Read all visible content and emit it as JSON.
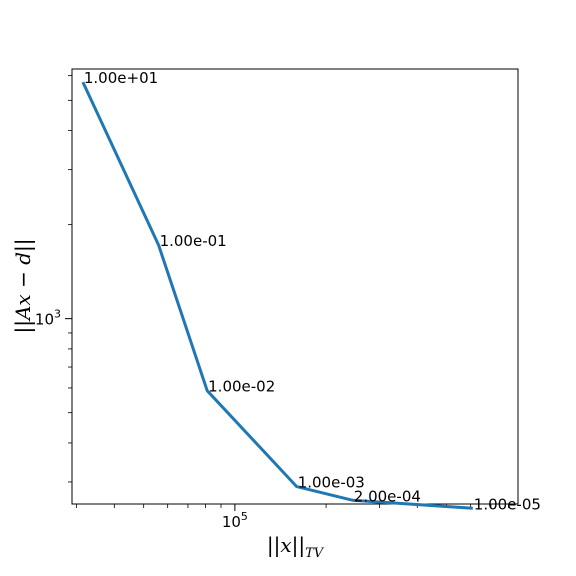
{
  "chart_data": {
    "type": "line",
    "xscale": "log",
    "yscale": "log",
    "xlabel": "||x||_TV",
    "ylabel": "||Ax − d||",
    "x_tick_label": "10",
    "x_tick_exp": "5",
    "y_tick_label": "10",
    "y_tick_exp": "3",
    "xlim": [
      29000,
      860000
    ],
    "ylim": [
      255,
      6300
    ],
    "series_color": "#1f77b4",
    "grid": false,
    "x": [
      31500,
      56000,
      81000,
      160000,
      245000,
      610000
    ],
    "y": [
      5720,
      1720,
      588,
      290,
      262,
      247
    ],
    "points": [
      {
        "label": "1.00e+01",
        "x": 31500,
        "y": 5720
      },
      {
        "label": "1.00e-01",
        "x": 56000,
        "y": 1720
      },
      {
        "label": "1.00e-02",
        "x": 81000,
        "y": 588
      },
      {
        "label": "1.00e-03",
        "x": 160000,
        "y": 290
      },
      {
        "label": "2.00e-04",
        "x": 245000,
        "y": 262
      },
      {
        "label": "1.00e-05",
        "x": 610000,
        "y": 247
      }
    ]
  }
}
